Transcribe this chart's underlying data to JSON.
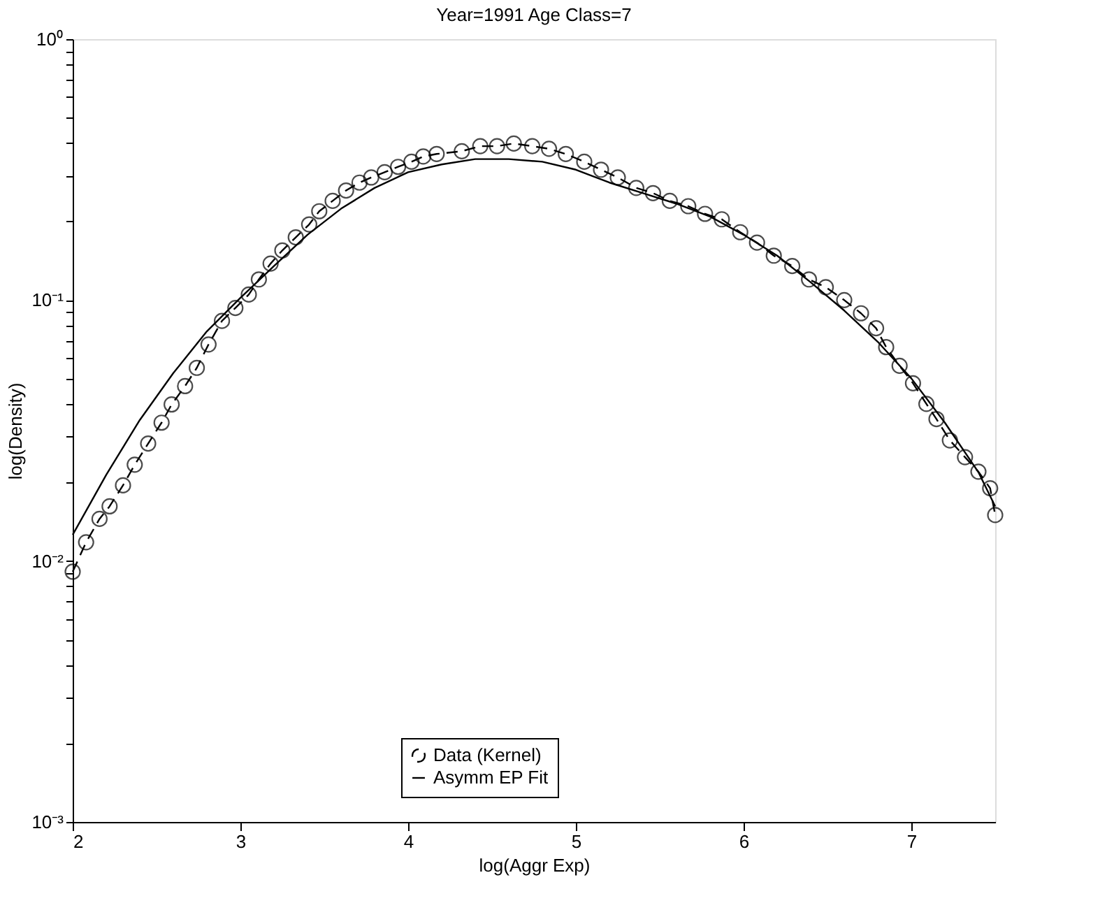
{
  "chart_data": {
    "type": "line",
    "title": "Year=1991 Age Class=7",
    "xlabel": "log(Aggr Exp)",
    "ylabel": "log(Density)",
    "log": "y",
    "grid": false,
    "legend": "bottom",
    "xlim": [
      2,
      7.5
    ],
    "xticks": [
      2,
      3,
      4,
      5,
      6,
      7
    ],
    "ylim": [
      0.001,
      1
    ],
    "yticks": [
      {
        "value": 0.001,
        "label": "10⁻³"
      },
      {
        "value": 0.002,
        "label": null
      },
      {
        "value": 0.003,
        "label": null
      },
      {
        "value": 0.004,
        "label": null
      },
      {
        "value": 0.005,
        "label": null
      },
      {
        "value": 0.006,
        "label": null
      },
      {
        "value": 0.007,
        "label": null
      },
      {
        "value": 0.008,
        "label": null
      },
      {
        "value": 0.009,
        "label": null
      },
      {
        "value": 0.01,
        "label": "10⁻²"
      },
      {
        "value": 0.02,
        "label": null
      },
      {
        "value": 0.03,
        "label": null
      },
      {
        "value": 0.04,
        "label": null
      },
      {
        "value": 0.05,
        "label": null
      },
      {
        "value": 0.06,
        "label": null
      },
      {
        "value": 0.07,
        "label": null
      },
      {
        "value": 0.08,
        "label": null
      },
      {
        "value": 0.09,
        "label": null
      },
      {
        "value": 0.1,
        "label": "10⁻¹"
      },
      {
        "value": 0.2,
        "label": null
      },
      {
        "value": 0.3,
        "label": null
      },
      {
        "value": 0.4,
        "label": null
      },
      {
        "value": 0.5,
        "label": null
      },
      {
        "value": 0.6,
        "label": null
      },
      {
        "value": 0.7,
        "label": null
      },
      {
        "value": 0.8,
        "label": null
      },
      {
        "value": 0.9,
        "label": null
      },
      {
        "value": 1,
        "label": "10⁰"
      }
    ],
    "series": [
      {
        "name": "Data (Kernel)",
        "color": "#000000",
        "marker": "circle",
        "line_style": "dashed",
        "x": [
          2.0,
          2.08,
          2.16,
          2.22,
          2.3,
          2.37,
          2.45,
          2.53,
          2.59,
          2.67,
          2.74,
          2.81,
          2.89,
          2.97,
          3.05,
          3.11,
          3.18,
          3.25,
          3.33,
          3.41,
          3.47,
          3.55,
          3.63,
          3.71,
          3.78,
          3.86,
          3.94,
          4.02,
          4.09,
          4.17,
          4.32,
          4.43,
          4.53,
          4.63,
          4.74,
          4.84,
          4.94,
          5.05,
          5.15,
          5.25,
          5.36,
          5.46,
          5.56,
          5.67,
          5.77,
          5.87,
          5.98,
          6.08,
          6.18,
          6.29,
          6.39,
          6.49,
          6.6,
          6.7,
          6.79,
          6.85,
          6.93,
          7.01,
          7.09,
          7.15,
          7.23,
          7.32,
          7.4,
          7.47,
          7.5
        ],
        "values": [
          0.0091,
          0.0118,
          0.0145,
          0.0162,
          0.0195,
          0.0234,
          0.0282,
          0.0339,
          0.0398,
          0.0468,
          0.055,
          0.0676,
          0.0832,
          0.0933,
          0.105,
          0.12,
          0.138,
          0.155,
          0.174,
          0.195,
          0.219,
          0.24,
          0.263,
          0.282,
          0.295,
          0.309,
          0.324,
          0.339,
          0.355,
          0.363,
          0.372,
          0.389,
          0.389,
          0.398,
          0.389,
          0.38,
          0.363,
          0.339,
          0.316,
          0.295,
          0.269,
          0.257,
          0.24,
          0.229,
          0.214,
          0.204,
          0.182,
          0.166,
          0.148,
          0.135,
          0.12,
          0.112,
          0.1,
          0.089,
          0.078,
          0.066,
          0.056,
          0.048,
          0.04,
          0.035,
          0.029,
          0.025,
          0.022,
          0.019,
          0.015
        ]
      },
      {
        "name": "Asymm EP Fit",
        "color": "#000000",
        "marker": "none",
        "line_style": "solid",
        "x": [
          2.0,
          2.2,
          2.4,
          2.6,
          2.8,
          3.0,
          3.2,
          3.4,
          3.6,
          3.8,
          4.0,
          4.2,
          4.4,
          4.6,
          4.8,
          5.0,
          5.2,
          5.4,
          5.6,
          5.8,
          6.0,
          6.2,
          6.4,
          6.6,
          6.8,
          7.0,
          7.2,
          7.4,
          7.5
        ],
        "values": [
          0.0126,
          0.0214,
          0.0347,
          0.0525,
          0.0759,
          0.102,
          0.135,
          0.178,
          0.224,
          0.269,
          0.309,
          0.331,
          0.347,
          0.347,
          0.339,
          0.316,
          0.282,
          0.257,
          0.234,
          0.209,
          0.178,
          0.148,
          0.117,
          0.0912,
          0.0692,
          0.0501,
          0.0339,
          0.0219,
          0.0162
        ]
      }
    ]
  }
}
